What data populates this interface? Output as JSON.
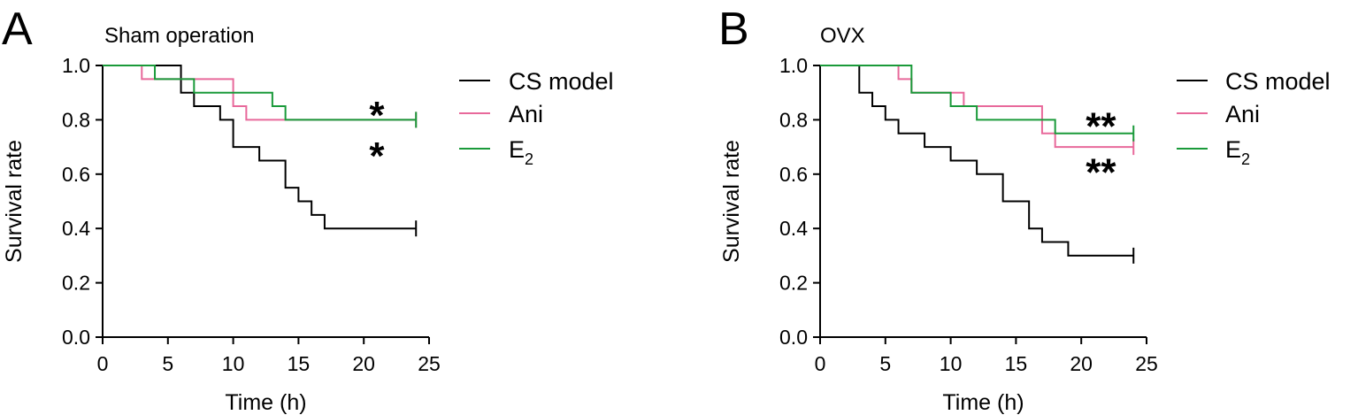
{
  "chart_data": [
    {
      "panel": "A",
      "title": "Sham operation",
      "type": "line",
      "step": true,
      "xlabel": "Time (h)",
      "ylabel": "Survival rate",
      "xlim": [
        0,
        25
      ],
      "ylim": [
        0,
        1.0
      ],
      "xticks": [
        "0",
        "5",
        "10",
        "15",
        "20",
        "25"
      ],
      "yticks": [
        "0.0",
        "0.2",
        "0.4",
        "0.6",
        "0.8",
        "1.0"
      ],
      "legend_position": "right",
      "series": [
        {
          "name": "CS model",
          "color": "#000000",
          "x": [
            0,
            6,
            7,
            9,
            10,
            12,
            14,
            15,
            16,
            17,
            24
          ],
          "y": [
            1.0,
            0.9,
            0.85,
            0.8,
            0.7,
            0.65,
            0.55,
            0.5,
            0.45,
            0.4,
            0.4
          ]
        },
        {
          "name": "Ani",
          "color": "#e8699b",
          "x": [
            0,
            3,
            4,
            10,
            11,
            24
          ],
          "y": [
            1.0,
            0.95,
            0.95,
            0.85,
            0.8,
            0.8
          ]
        },
        {
          "name": "E",
          "name_sub": "2",
          "color": "#1a9a3a",
          "x": [
            0,
            4,
            7,
            13,
            14,
            24
          ],
          "y": [
            1.0,
            0.95,
            0.9,
            0.85,
            0.8,
            0.8
          ]
        }
      ],
      "annotations": [
        {
          "text": "*",
          "x": 21,
          "y": 0.84
        },
        {
          "text": "*",
          "x": 21,
          "y": 0.69
        }
      ]
    },
    {
      "panel": "B",
      "title": "OVX",
      "type": "line",
      "step": true,
      "xlabel": "Time (h)",
      "ylabel": "Survival rate",
      "xlim": [
        0,
        25
      ],
      "ylim": [
        0,
        1.0
      ],
      "xticks": [
        "0",
        "5",
        "10",
        "15",
        "20",
        "25"
      ],
      "yticks": [
        "0.0",
        "0.2",
        "0.4",
        "0.6",
        "0.8",
        "1.0"
      ],
      "legend_position": "right",
      "series": [
        {
          "name": "CS model",
          "color": "#000000",
          "x": [
            0,
            3,
            4,
            5,
            6,
            8,
            10,
            12,
            14,
            16,
            17,
            19,
            24
          ],
          "y": [
            1.0,
            0.9,
            0.85,
            0.8,
            0.75,
            0.7,
            0.65,
            0.6,
            0.5,
            0.4,
            0.35,
            0.3,
            0.3
          ]
        },
        {
          "name": "Ani",
          "color": "#e8699b",
          "x": [
            0,
            6,
            7,
            9,
            11,
            17,
            18,
            24
          ],
          "y": [
            1.0,
            0.95,
            0.9,
            0.9,
            0.85,
            0.75,
            0.7,
            0.7
          ]
        },
        {
          "name": "E",
          "name_sub": "2",
          "color": "#1a9a3a",
          "x": [
            0,
            7,
            8,
            10,
            12,
            18,
            24
          ],
          "y": [
            1.0,
            0.9,
            0.9,
            0.85,
            0.8,
            0.75,
            0.75
          ]
        }
      ],
      "annotations": [
        {
          "text": "**",
          "x": 21.5,
          "y": 0.8
        },
        {
          "text": "**",
          "x": 21.5,
          "y": 0.63
        }
      ]
    }
  ]
}
